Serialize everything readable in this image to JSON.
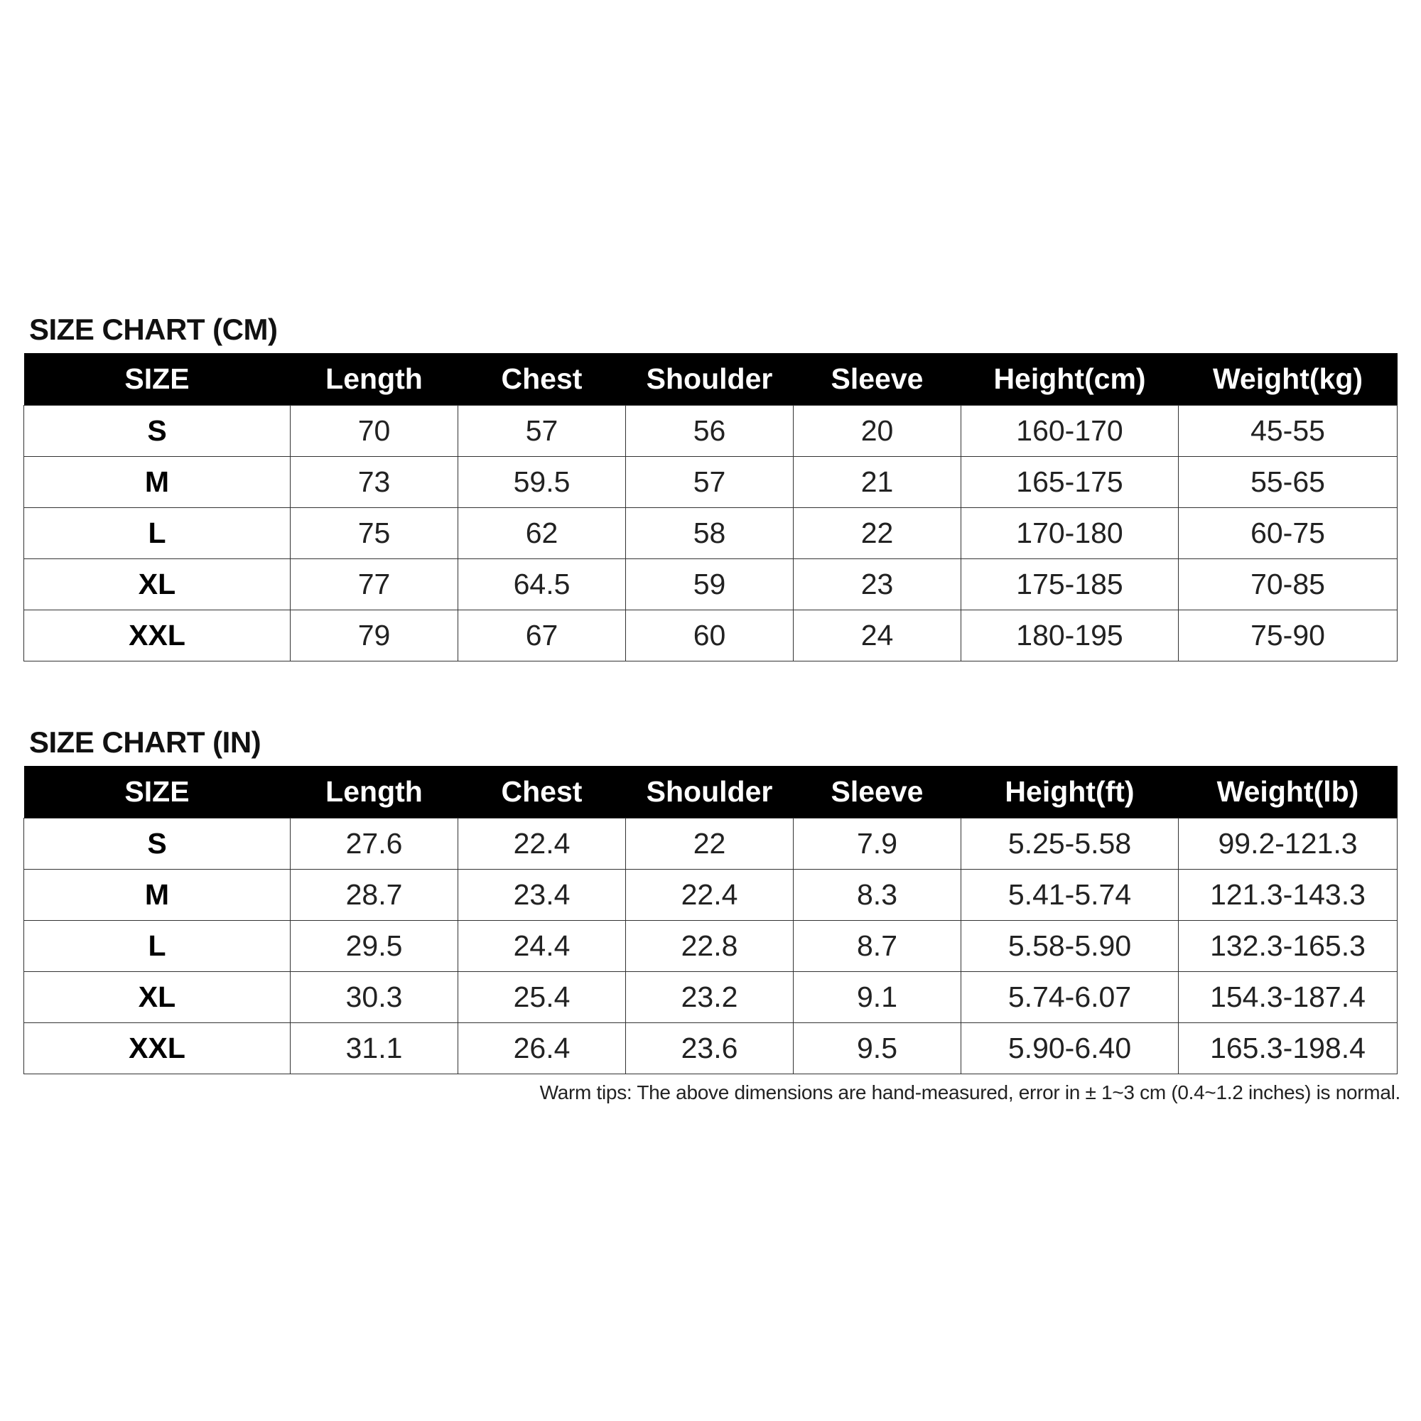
{
  "charts": [
    {
      "title": "SIZE CHART (CM)",
      "headers": [
        "SIZE",
        "Length",
        "Chest",
        "Shoulder",
        "Sleeve",
        "Height(cm)",
        "Weight(kg)"
      ],
      "rows": [
        [
          "S",
          "70",
          "57",
          "56",
          "20",
          "160-170",
          "45-55"
        ],
        [
          "M",
          "73",
          "59.5",
          "57",
          "21",
          "165-175",
          "55-65"
        ],
        [
          "L",
          "75",
          "62",
          "58",
          "22",
          "170-180",
          "60-75"
        ],
        [
          "XL",
          "77",
          "64.5",
          "59",
          "23",
          "175-185",
          "70-85"
        ],
        [
          "XXL",
          "79",
          "67",
          "60",
          "24",
          "180-195",
          "75-90"
        ]
      ]
    },
    {
      "title": "SIZE CHART (IN)",
      "headers": [
        "SIZE",
        "Length",
        "Chest",
        "Shoulder",
        "Sleeve",
        "Height(ft)",
        "Weight(lb)"
      ],
      "rows": [
        [
          "S",
          "27.6",
          "22.4",
          "22",
          "7.9",
          "5.25-5.58",
          "99.2-121.3"
        ],
        [
          "M",
          "28.7",
          "23.4",
          "22.4",
          "8.3",
          "5.41-5.74",
          "121.3-143.3"
        ],
        [
          "L",
          "29.5",
          "24.4",
          "22.8",
          "8.7",
          "5.58-5.90",
          "132.3-165.3"
        ],
        [
          "XL",
          "30.3",
          "25.4",
          "23.2",
          "9.1",
          "5.74-6.07",
          "154.3-187.4"
        ],
        [
          "XXL",
          "31.1",
          "26.4",
          "23.6",
          "9.5",
          "5.90-6.40",
          "165.3-198.4"
        ]
      ]
    }
  ],
  "note": "Warm tips: The above dimensions are hand-measured, error in ± 1~3 cm (0.4~1.2 inches) is normal."
}
